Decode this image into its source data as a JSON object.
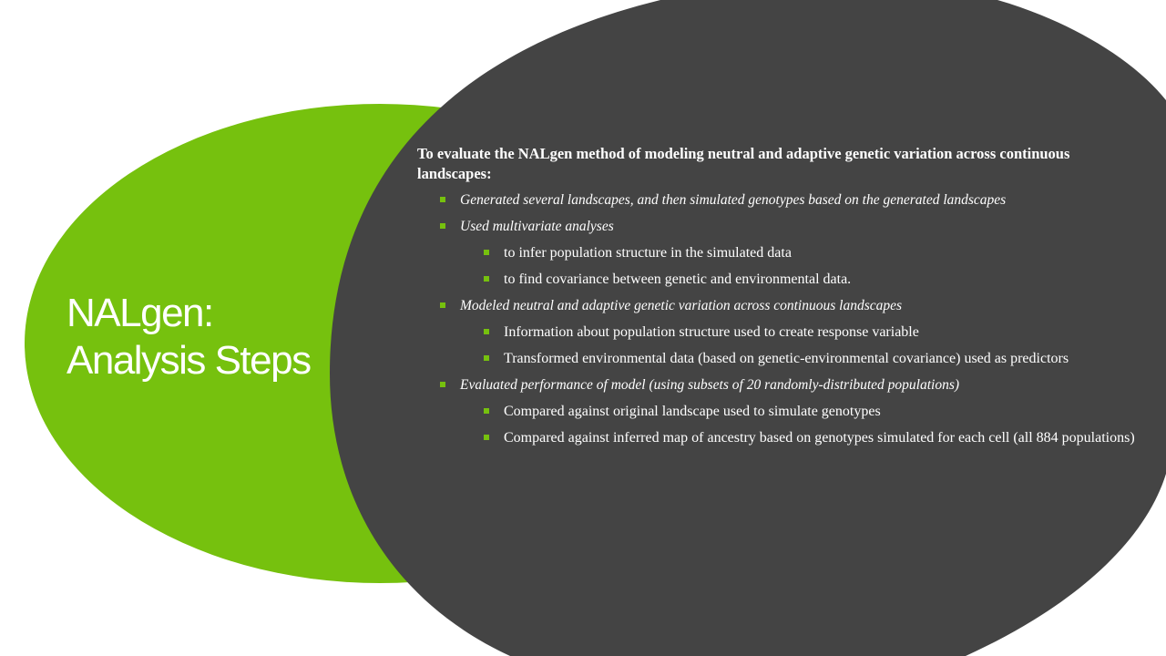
{
  "slide": {
    "title_line1": "NALgen:",
    "title_line2": "Analysis Steps",
    "colors": {
      "accent_green": "#76c10e",
      "dark_shape": "#444444",
      "text": "#ffffff"
    }
  },
  "content": {
    "intro": "To evaluate the NALgen method of modeling neutral and adaptive genetic variation across continuous landscapes:",
    "items": [
      {
        "level": 1,
        "text": "Generated several landscapes, and then simulated genotypes based on the generated landscapes"
      },
      {
        "level": 1,
        "text": "Used multivariate analyses"
      },
      {
        "level": 2,
        "text": "to infer population structure in the simulated data"
      },
      {
        "level": 2,
        "text": "to find covariance between genetic and environmental data."
      },
      {
        "level": 1,
        "text": "Modeled neutral and adaptive genetic variation across continuous landscapes"
      },
      {
        "level": 2,
        "text": "Information about population structure used to create response variable"
      },
      {
        "level": 2,
        "text": "Transformed environmental data (based on genetic-environmental covariance) used as predictors"
      },
      {
        "level": 1,
        "text": "Evaluated performance of model (using subsets of 20 randomly-distributed populations)"
      },
      {
        "level": 2,
        "text": "Compared against original landscape used to simulate genotypes"
      },
      {
        "level": 2,
        "text": "Compared against inferred map of ancestry based on genotypes simulated for each cell (all 884 populations)"
      }
    ]
  }
}
